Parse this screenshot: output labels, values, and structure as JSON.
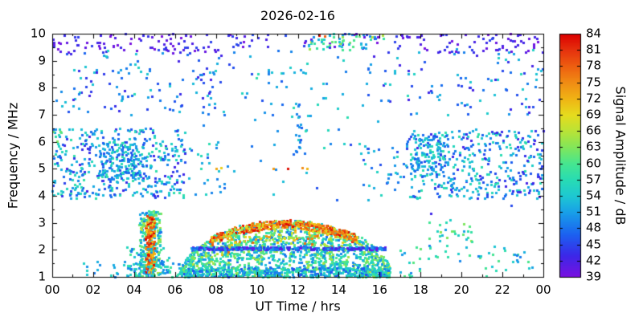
{
  "chart_data": {
    "type": "heatmap",
    "title": "2026-02-16",
    "xlabel": "UT Time / hrs",
    "ylabel": "Frequency / MHz",
    "xlim": [
      0,
      24
    ],
    "ylim": [
      1,
      10
    ],
    "grid": false,
    "xticks": {
      "values": [
        0,
        2,
        4,
        6,
        8,
        10,
        12,
        14,
        16,
        18,
        20,
        22,
        24
      ],
      "labels": [
        "00",
        "02",
        "04",
        "06",
        "08",
        "10",
        "12",
        "14",
        "16",
        "18",
        "20",
        "22",
        "00"
      ]
    },
    "yticks": {
      "values": [
        1,
        2,
        3,
        4,
        5,
        6,
        7,
        8,
        9,
        10
      ],
      "labels": [
        "1",
        "2",
        "3",
        "4",
        "5",
        "6",
        "7",
        "8",
        "9",
        "10"
      ]
    },
    "colorbar": {
      "label": "Signal Amplitude / dB",
      "min": 39,
      "max": 84,
      "ticks": [
        39,
        42,
        45,
        48,
        51,
        54,
        57,
        60,
        63,
        66,
        69,
        72,
        75,
        78,
        81,
        84
      ],
      "stops": [
        {
          "v": 39,
          "c": "#7a10e0"
        },
        {
          "v": 43,
          "c": "#3c28e8"
        },
        {
          "v": 47,
          "c": "#1b63f0"
        },
        {
          "v": 51,
          "c": "#18a0e8"
        },
        {
          "v": 54,
          "c": "#1ec8d2"
        },
        {
          "v": 57,
          "c": "#28dcb4"
        },
        {
          "v": 60,
          "c": "#46e690"
        },
        {
          "v": 63,
          "c": "#82e65a"
        },
        {
          "v": 66,
          "c": "#b9e337"
        },
        {
          "v": 69,
          "c": "#e6dc1e"
        },
        {
          "v": 72,
          "c": "#f0b414"
        },
        {
          "v": 75,
          "c": "#f08c14"
        },
        {
          "v": 78,
          "c": "#ee5f10"
        },
        {
          "v": 81,
          "c": "#e6320e"
        },
        {
          "v": 84,
          "c": "#dc0000"
        }
      ]
    },
    "features": [
      {
        "name": "top-purple-left",
        "mode": "uniform",
        "x": [
          0,
          8
        ],
        "y": [
          9.3,
          10
        ],
        "count": 85,
        "amp": [
          39,
          45
        ]
      },
      {
        "name": "top-purple-right",
        "mode": "uniform",
        "x": [
          16.5,
          24
        ],
        "y": [
          9.3,
          10
        ],
        "count": 75,
        "amp": [
          39,
          45
        ]
      },
      {
        "name": "top-purple-mid",
        "mode": "uniform",
        "x": [
          8,
          16.5
        ],
        "y": [
          9.5,
          10
        ],
        "count": 35,
        "amp": [
          39,
          46
        ]
      },
      {
        "name": "band-9mhz-scatter",
        "mode": "uniform",
        "x": [
          0,
          24
        ],
        "y": [
          8.5,
          9.5
        ],
        "count": 80,
        "amp": [
          42,
          57
        ]
      },
      {
        "name": "cluster-9p7-cyan",
        "mode": "uniform",
        "x": [
          12.5,
          16.2
        ],
        "y": [
          9.4,
          10
        ],
        "count": 55,
        "amp": [
          48,
          66
        ]
      },
      {
        "name": "red-dots-top",
        "mode": "points",
        "pts": [
          [
            13.05,
            9.95,
            83
          ],
          [
            13.3,
            9.9,
            78
          ]
        ]
      },
      {
        "name": "left-7-9",
        "mode": "uniform",
        "x": [
          0,
          8
        ],
        "y": [
          7,
          8.7
        ],
        "count": 90,
        "amp": [
          42,
          55
        ]
      },
      {
        "name": "right-7-9",
        "mode": "uniform",
        "x": [
          16,
          24
        ],
        "y": [
          7,
          8.7
        ],
        "count": 65,
        "amp": [
          42,
          55
        ]
      },
      {
        "name": "mid-7-9-sparse",
        "mode": "uniform",
        "x": [
          8,
          16
        ],
        "y": [
          6.3,
          8.7
        ],
        "count": 45,
        "amp": [
          45,
          58
        ]
      },
      {
        "name": "night-left-block",
        "mode": "uniform",
        "x": [
          0,
          6.5
        ],
        "y": [
          3.9,
          6.5
        ],
        "count": 430,
        "amp": [
          42,
          58
        ]
      },
      {
        "name": "night-left-dense",
        "mode": "uniform",
        "x": [
          2.3,
          4.3
        ],
        "y": [
          4.6,
          6.0
        ],
        "count": 130,
        "amp": [
          45,
          58
        ]
      },
      {
        "name": "night-right-block",
        "mode": "uniform",
        "x": [
          17.3,
          24
        ],
        "y": [
          3.9,
          6.5
        ],
        "count": 380,
        "amp": [
          42,
          58
        ]
      },
      {
        "name": "night-right-dense",
        "mode": "uniform",
        "x": [
          17.5,
          19.2
        ],
        "y": [
          4.7,
          6.3
        ],
        "count": 110,
        "amp": [
          45,
          58
        ]
      },
      {
        "name": "day-4-6-left-edge",
        "mode": "uniform",
        "x": [
          6.5,
          8.5
        ],
        "y": [
          4,
          6
        ],
        "count": 25,
        "amp": [
          45,
          58
        ]
      },
      {
        "name": "day-4-6-right-edge",
        "mode": "uniform",
        "x": [
          15,
          17.3
        ],
        "y": [
          4,
          6
        ],
        "count": 35,
        "amp": [
          45,
          58
        ]
      },
      {
        "name": "day-4-6-center",
        "mode": "uniform",
        "x": [
          8.5,
          15
        ],
        "y": [
          4,
          6
        ],
        "count": 14,
        "amp": [
          45,
          58
        ]
      },
      {
        "name": "vertical-line-noon",
        "mode": "uniform",
        "x": [
          11.9,
          12.15
        ],
        "y": [
          5.5,
          7.6
        ],
        "count": 16,
        "amp": [
          45,
          55
        ]
      },
      {
        "name": "orange-dots-5mhz",
        "mode": "points",
        "pts": [
          [
            8.0,
            5.0,
            73
          ],
          [
            8.25,
            5.05,
            70
          ],
          [
            10.8,
            5.0,
            74
          ],
          [
            11.5,
            5.0,
            83
          ],
          [
            12.2,
            5.05,
            75
          ],
          [
            12.45,
            5.0,
            72
          ]
        ]
      },
      {
        "name": "burst-column-0445",
        "mode": "uniform",
        "x": [
          4.25,
          5.3
        ],
        "y": [
          1,
          3.45
        ],
        "count": 280,
        "amp": [
          48,
          66
        ]
      },
      {
        "name": "burst-core-red",
        "mode": "uniform",
        "x": [
          4.55,
          5.0
        ],
        "y": [
          1.15,
          3.25
        ],
        "count": 150,
        "amp": [
          69,
          84
        ]
      },
      {
        "name": "burst-halo",
        "mode": "uniform",
        "x": [
          3.6,
          5.7
        ],
        "y": [
          1,
          2.1
        ],
        "count": 70,
        "amp": [
          48,
          60
        ]
      },
      {
        "name": "pre-dome-sparse",
        "mode": "uniform",
        "x": [
          5.3,
          6.2
        ],
        "y": [
          1,
          1.6
        ],
        "count": 18,
        "amp": [
          48,
          60
        ]
      },
      {
        "name": "dome-body",
        "mode": "dome",
        "x": [
          6.3,
          16.5
        ],
        "count": 1500,
        "amp": [
          48,
          66
        ],
        "dome": {
          "xc": 11.4,
          "hw": 5.15,
          "base": 1.0,
          "peak": 2.1
        }
      },
      {
        "name": "dome-cap-hot",
        "mode": "dome_cap",
        "x": [
          7.7,
          14.9
        ],
        "count": 380,
        "amp": [
          68,
          84
        ],
        "thick": 0.32,
        "dome": {
          "xc": 11.4,
          "hw": 5.15,
          "base": 1.0,
          "peak": 2.1
        }
      },
      {
        "name": "dome-upper-mix",
        "mode": "dome_cap",
        "x": [
          8.2,
          14.3
        ],
        "count": 140,
        "amp": [
          60,
          78
        ],
        "thick": 0.85,
        "dome": {
          "xc": 11.4,
          "hw": 5.15,
          "base": 1.0,
          "peak": 2.1
        }
      },
      {
        "name": "dome-base-dense",
        "mode": "uniform",
        "x": [
          6.2,
          16.6
        ],
        "y": [
          1,
          1.35
        ],
        "count": 420,
        "amp": [
          45,
          60
        ]
      },
      {
        "name": "e-line-2mhz",
        "mode": "line",
        "x": [
          6.8,
          16.3
        ],
        "y": [
          2.0,
          2.1
        ],
        "count": 320,
        "amp": [
          39,
          52
        ]
      },
      {
        "name": "low-left-sparse",
        "mode": "uniform",
        "x": [
          1.5,
          4.1
        ],
        "y": [
          1,
          1.6
        ],
        "count": 22,
        "amp": [
          48,
          58
        ]
      },
      {
        "name": "low-right-sparse",
        "mode": "uniform",
        "x": [
          16.8,
          23.5
        ],
        "y": [
          1,
          2.2
        ],
        "count": 55,
        "amp": [
          48,
          62
        ]
      },
      {
        "name": "right-2p5-3-cluster",
        "mode": "uniform",
        "x": [
          18.4,
          20.6
        ],
        "y": [
          2.3,
          3.1
        ],
        "count": 26,
        "amp": [
          51,
          64
        ]
      },
      {
        "name": "background-sparse",
        "mode": "uniform",
        "x": [
          0,
          24
        ],
        "y": [
          3.2,
          9.2
        ],
        "count": 35,
        "amp": [
          42,
          57
        ]
      },
      {
        "name": "left-edge-green",
        "mode": "uniform",
        "x": [
          0,
          0.6
        ],
        "y": [
          5.7,
          6.4
        ],
        "count": 8,
        "amp": [
          55,
          64
        ]
      }
    ]
  }
}
